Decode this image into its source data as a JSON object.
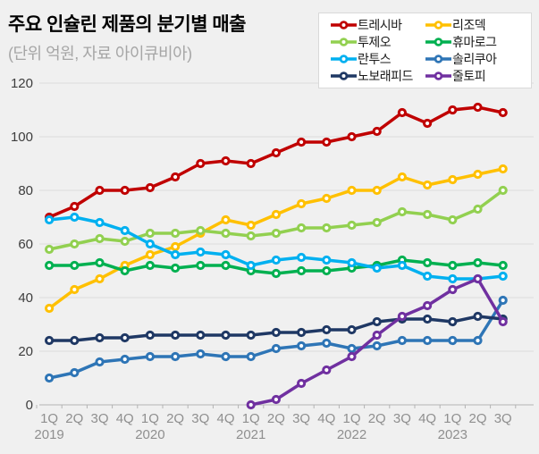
{
  "header": {
    "title": "주요 인슐린 제품의 분기별 매출",
    "subtitle": "(단위 억원, 자료 아이큐비아)"
  },
  "chart_data": {
    "type": "line",
    "title": "주요 인슐린 제품의 분기별 매출",
    "subtitle": "(단위 억원, 자료 아이큐비아)",
    "background_color": "#f0f0f0",
    "grid": true,
    "legend_position": "top-right",
    "ylim": [
      0,
      120
    ],
    "y_ticks": [
      0,
      20,
      40,
      60,
      80,
      100,
      120
    ],
    "x_categories": [
      "1Q",
      "2Q",
      "3Q",
      "4Q",
      "1Q",
      "2Q",
      "3Q",
      "4Q",
      "1Q",
      "2Q",
      "3Q",
      "4Q",
      "1Q",
      "2Q",
      "3Q",
      "4Q",
      "1Q",
      "2Q",
      "3Q"
    ],
    "x_years": [
      {
        "label": "2019",
        "index": 0
      },
      {
        "label": "2020",
        "index": 4
      },
      {
        "label": "2021",
        "index": 8
      },
      {
        "label": "2022",
        "index": 12
      },
      {
        "label": "2023",
        "index": 16
      }
    ],
    "series": [
      {
        "key": "tresiba",
        "name": "트레시바",
        "color": "#c00000",
        "values": [
          70,
          74,
          80,
          80,
          81,
          85,
          90,
          91,
          90,
          94,
          98,
          98,
          100,
          102,
          109,
          105,
          110,
          111,
          109
        ]
      },
      {
        "key": "ryzodeg",
        "name": "리조덱",
        "color": "#ffc000",
        "values": [
          36,
          43,
          47,
          52,
          56,
          59,
          64,
          69,
          67,
          71,
          75,
          77,
          80,
          80,
          85,
          82,
          84,
          86,
          88
        ]
      },
      {
        "key": "toujeo",
        "name": "투제오",
        "color": "#92d050",
        "values": [
          58,
          60,
          62,
          61,
          64,
          64,
          65,
          64,
          63,
          64,
          66,
          66,
          67,
          68,
          72,
          71,
          69,
          73,
          80
        ]
      },
      {
        "key": "humalog",
        "name": "휴마로그",
        "color": "#00b050",
        "values": [
          52,
          52,
          53,
          50,
          52,
          51,
          52,
          52,
          50,
          49,
          50,
          50,
          51,
          52,
          54,
          53,
          52,
          53,
          52
        ]
      },
      {
        "key": "lantus",
        "name": "란투스",
        "color": "#00b0f0",
        "values": [
          69,
          70,
          68,
          65,
          60,
          56,
          57,
          56,
          52,
          54,
          55,
          54,
          53,
          51,
          52,
          48,
          47,
          47,
          48
        ]
      },
      {
        "key": "soliqua",
        "name": "솔리쿠아",
        "color": "#2e75b6",
        "values": [
          10,
          12,
          16,
          17,
          18,
          18,
          19,
          18,
          18,
          21,
          22,
          23,
          21,
          22,
          24,
          24,
          24,
          24,
          39
        ]
      },
      {
        "key": "novorapid",
        "name": "노보래피드",
        "color": "#1f3864",
        "values": [
          24,
          24,
          25,
          25,
          26,
          26,
          26,
          26,
          26,
          27,
          27,
          28,
          28,
          31,
          32,
          32,
          31,
          33,
          32
        ]
      },
      {
        "key": "xultophy",
        "name": "줄토피",
        "color": "#7030a0",
        "values": [
          null,
          null,
          null,
          null,
          null,
          null,
          null,
          null,
          0,
          2,
          8,
          13,
          18,
          26,
          33,
          37,
          43,
          47,
          31
        ]
      }
    ],
    "style": {
      "grid_color": "#dcdcdc",
      "axis_color": "#b3b3b3",
      "y_label_color": "#3d3d3d",
      "x_label_color": "#8f8f8f"
    }
  }
}
